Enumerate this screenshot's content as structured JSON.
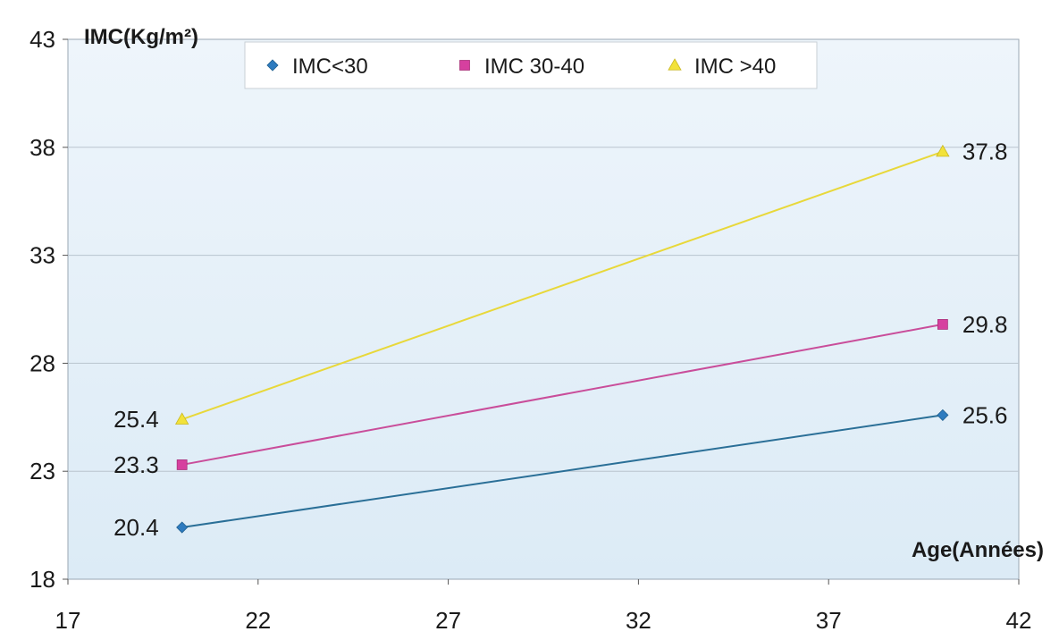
{
  "chart_data": {
    "type": "line",
    "title": "",
    "xlabel": "Age(Années)",
    "ylabel": "IMC(Kg/m²)",
    "xlim": [
      17,
      42
    ],
    "ylim": [
      18,
      43
    ],
    "xticks": [
      "17",
      "22",
      "27",
      "32",
      "37",
      "42"
    ],
    "yticks": [
      "18",
      "23",
      "28",
      "33",
      "38",
      "43"
    ],
    "grid": "horizontal",
    "legend_position": "top",
    "series": [
      {
        "name": "IMC<30",
        "color": "#2a6f97",
        "marker_color": "#2e7bbf",
        "marker": "diamond",
        "points": [
          {
            "x": 20,
            "y": 20.4,
            "label": "20.4"
          },
          {
            "x": 40,
            "y": 25.6,
            "label": "25.6"
          }
        ]
      },
      {
        "name": "IMC 30-40",
        "color": "#c94d9a",
        "marker_color": "#d6409f",
        "marker": "square",
        "points": [
          {
            "x": 20,
            "y": 23.3,
            "label": "23.3"
          },
          {
            "x": 40,
            "y": 29.8,
            "label": "29.8"
          }
        ]
      },
      {
        "name": "IMC >40",
        "color": "#e8d83a",
        "marker_color": "#f2e23a",
        "marker": "triangle",
        "points": [
          {
            "x": 20,
            "y": 25.4,
            "label": "25.4"
          },
          {
            "x": 40,
            "y": 37.8,
            "label": "37.8"
          }
        ]
      }
    ]
  }
}
